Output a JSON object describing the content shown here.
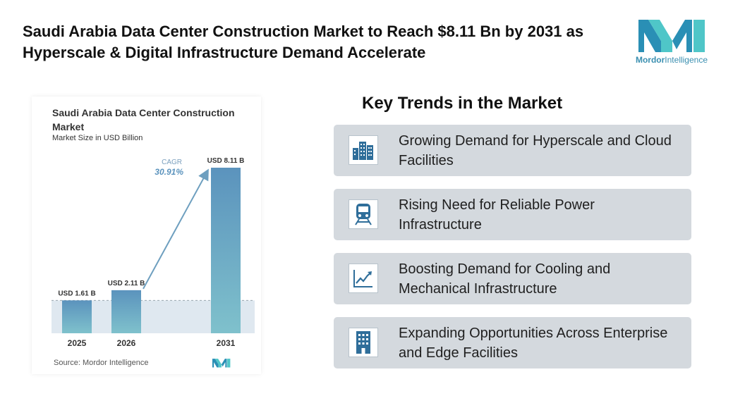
{
  "headline": "Saudi Arabia Data Center Construction Market to Reach $8.11 Bn by 2031 as Hyperscale & Digital Infrastructure Demand Accelerate",
  "brand": {
    "name_bold": "Mordor",
    "name_rest": "Intelligence",
    "logo_icon": "mordor-logo-icon",
    "colors": [
      "#2a8fb5",
      "#4fc6c8"
    ]
  },
  "chart_card": {
    "title": "Saudi Arabia Data Center Construction Market",
    "subtitle": "Market Size in USD Billion",
    "source": "Source: Mordor Intelligence"
  },
  "chart_data": {
    "type": "bar",
    "categories": [
      "2025",
      "2026",
      "2031"
    ],
    "values": [
      1.61,
      2.11,
      8.11
    ],
    "value_labels": [
      "USD 1.61 B",
      "USD 2.11 B",
      "USD 8.11 B"
    ],
    "cagr_label": "CAGR",
    "cagr_value": "30.91%",
    "ylim": [
      0,
      8.11
    ],
    "colors": {
      "bar_top": "#5b93bd",
      "bar_bottom": "#7fc1cc",
      "arrow": "#6e9fbf",
      "band": "#dfe8f0"
    }
  },
  "trends": {
    "heading": "Key Trends in the Market",
    "items": [
      {
        "label": "Growing Demand for Hyperscale and Cloud Facilities",
        "icon": "city-buildings-icon"
      },
      {
        "label": "Rising Need for Reliable Power Infrastructure",
        "icon": "train-icon"
      },
      {
        "label": "Boosting Demand for Cooling and Mechanical Infrastructure",
        "icon": "line-chart-icon"
      },
      {
        "label": "Expanding Opportunities Across Enterprise and Edge Facilities",
        "icon": "office-building-icon"
      }
    ],
    "card_color": "#d4d9de",
    "icon_color": "#2f6e9a"
  }
}
